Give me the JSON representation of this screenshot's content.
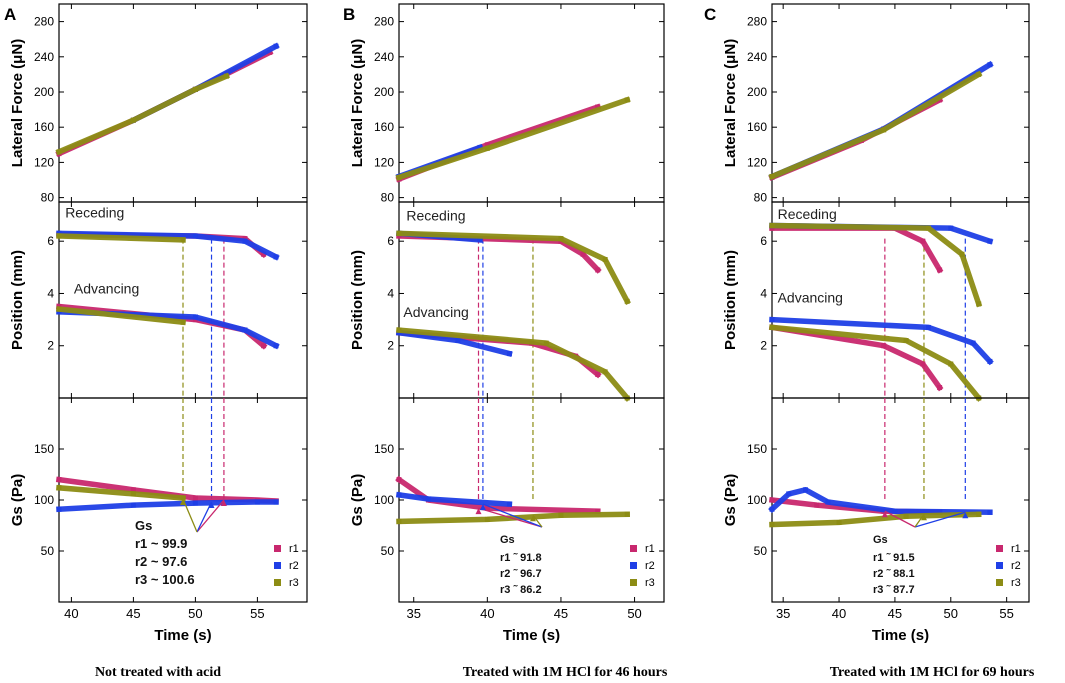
{
  "series_names": [
    "r1",
    "r2",
    "r3"
  ],
  "colors": {
    "r1": "#c8286e",
    "r2": "#1f3fe6",
    "r3": "#8c8c14"
  },
  "chart_data": [
    {
      "type": "scatter",
      "letter": "A",
      "caption": "Not treated with acid",
      "xlabel": "Time (s)",
      "xlim": [
        39,
        59
      ],
      "xticks": [
        "40",
        "45",
        "50",
        "55"
      ],
      "xtick_values": [
        40,
        45,
        50,
        55
      ],
      "panels": {
        "lateral": {
          "ylabel": "Lateral Force (μN)",
          "ylim": [
            75,
            300
          ],
          "yticks": [
            "80",
            "120",
            "160",
            "200",
            "240",
            "280"
          ],
          "ytick_values": [
            80,
            120,
            160,
            200,
            240,
            280
          ],
          "series": [
            {
              "name": "r1",
              "x": [
                39,
                45,
                50,
                56
              ],
              "y": [
                130,
                168,
                203,
                245
              ]
            },
            {
              "name": "r2",
              "x": [
                45,
                50,
                56.5
              ],
              "y": [
                168,
                203,
                252
              ]
            },
            {
              "name": "r3",
              "x": [
                39,
                45,
                50,
                52.5
              ],
              "y": [
                132,
                168,
                203,
                218
              ]
            }
          ]
        },
        "position": {
          "ylabel": "Position (mm)",
          "ylim": [
            0,
            7.5
          ],
          "yticks": [
            "2",
            "4",
            "6"
          ],
          "ytick_values": [
            2,
            4,
            6
          ],
          "labels": [
            {
              "text": "Receding",
              "x": 39.5,
              "y": 6.9
            },
            {
              "text": "Advancing",
              "x": 40.2,
              "y": 4.0
            }
          ],
          "series": [
            {
              "name": "r1",
              "x": [
                39,
                50,
                54,
                55.5
              ],
              "y": [
                6.25,
                6.2,
                6.1,
                5.5
              ]
            },
            {
              "name": "r2",
              "x": [
                39,
                50,
                54,
                56.5
              ],
              "y": [
                6.3,
                6.2,
                6.0,
                5.4
              ]
            },
            {
              "name": "r3",
              "x": [
                39,
                49
              ],
              "y": [
                6.2,
                6.05
              ]
            },
            {
              "name": "r1",
              "x": [
                39,
                50,
                54,
                55.5
              ],
              "y": [
                3.5,
                3.0,
                2.6,
                2.0
              ]
            },
            {
              "name": "r2",
              "x": [
                39,
                50,
                54,
                56.5
              ],
              "y": [
                3.3,
                3.1,
                2.6,
                2.0
              ]
            },
            {
              "name": "r3",
              "x": [
                39,
                49
              ],
              "y": [
                3.4,
                2.9
              ]
            }
          ],
          "dashed_x": [
            {
              "name": "r1",
              "x": 52.3
            },
            {
              "name": "r2",
              "x": 51.3
            },
            {
              "name": "r3",
              "x": 49
            }
          ]
        },
        "gs": {
          "ylabel": "Gs (Pa)",
          "ylim": [
            0,
            200
          ],
          "yticks": [
            "50",
            "100",
            "150"
          ],
          "ytick_values": [
            50,
            100,
            150
          ],
          "series": [
            {
              "name": "r1",
              "x": [
                39,
                45,
                50,
                55,
                56.5
              ],
              "y": [
                120,
                110,
                102,
                100,
                99
              ]
            },
            {
              "name": "r2",
              "x": [
                39,
                45,
                50,
                55,
                56.5
              ],
              "y": [
                91,
                95,
                97,
                98,
                98
              ]
            },
            {
              "name": "r3",
              "x": [
                39,
                45,
                49
              ],
              "y": [
                112,
                106,
                102
              ]
            }
          ],
          "gs_label": "Gs",
          "gs_values": [
            "r1 ~ 99.9",
            "r2 ~ 97.6",
            "r3 ~ 100.6"
          ],
          "arrow_targets": [
            {
              "name": "r1",
              "x": 52.3,
              "y": 100
            },
            {
              "name": "r2",
              "x": 51.3,
              "y": 98
            },
            {
              "name": "r3",
              "x": 49,
              "y": 101
            }
          ]
        }
      }
    },
    {
      "type": "scatter",
      "letter": "B",
      "caption": "Treated with  1M HCl for 46 hours",
      "xlabel": "Time (s)",
      "xlim": [
        34,
        52
      ],
      "xticks": [
        "35",
        "40",
        "45",
        "50"
      ],
      "xtick_values": [
        35,
        40,
        45,
        50
      ],
      "panels": {
        "lateral": {
          "ylabel": "Lateral Force (μN)",
          "ylim": [
            75,
            300
          ],
          "yticks": [
            "80",
            "120",
            "160",
            "200",
            "240",
            "280"
          ],
          "ytick_values": [
            80,
            120,
            160,
            200,
            240,
            280
          ],
          "series": [
            {
              "name": "r1",
              "x": [
                34,
                40,
                47.5
              ],
              "y": [
                101,
                140,
                183
              ]
            },
            {
              "name": "r2",
              "x": [
                34,
                39.5
              ],
              "y": [
                104,
                137
              ]
            },
            {
              "name": "r3",
              "x": [
                34,
                40,
                49.5
              ],
              "y": [
                103,
                136,
                191
              ]
            }
          ]
        },
        "position": {
          "ylabel": "Position (mm)",
          "ylim": [
            0,
            7.5
          ],
          "yticks": [
            "2",
            "4",
            "6"
          ],
          "ytick_values": [
            2,
            4,
            6
          ],
          "labels": [
            {
              "text": "Receding",
              "x": 34.5,
              "y": 6.8
            },
            {
              "text": "Advancing",
              "x": 34.3,
              "y": 3.1
            }
          ],
          "series": [
            {
              "name": "r1",
              "x": [
                34,
                45,
                46.5,
                47.5
              ],
              "y": [
                6.2,
                6.0,
                5.5,
                4.9
              ]
            },
            {
              "name": "r2",
              "x": [
                34,
                39.5
              ],
              "y": [
                6.3,
                6.05
              ]
            },
            {
              "name": "r3",
              "x": [
                34,
                45,
                48,
                49.5
              ],
              "y": [
                6.3,
                6.1,
                5.3,
                3.7
              ]
            },
            {
              "name": "r1",
              "x": [
                34,
                43,
                46,
                47.5
              ],
              "y": [
                2.5,
                2.1,
                1.6,
                0.9
              ]
            },
            {
              "name": "r2",
              "x": [
                34,
                38,
                41.5
              ],
              "y": [
                2.5,
                2.2,
                1.7
              ]
            },
            {
              "name": "r3",
              "x": [
                34,
                44,
                48,
                49.5
              ],
              "y": [
                2.6,
                2.1,
                1.0,
                0.0
              ]
            }
          ],
          "dashed_x": [
            {
              "name": "r1",
              "x": 39.4
            },
            {
              "name": "r2",
              "x": 39.7
            },
            {
              "name": "r3",
              "x": 43.1
            }
          ]
        },
        "gs": {
          "ylabel": "Gs (Pa)",
          "ylim": [
            0,
            200
          ],
          "yticks": [
            "50",
            "100",
            "150"
          ],
          "ytick_values": [
            50,
            100,
            150
          ],
          "series": [
            {
              "name": "r1",
              "x": [
                34,
                36,
                40,
                47.5
              ],
              "y": [
                120,
                100,
                92,
                89
              ]
            },
            {
              "name": "r2",
              "x": [
                34,
                36,
                41.5
              ],
              "y": [
                105,
                101,
                96
              ]
            },
            {
              "name": "r3",
              "x": [
                34,
                40,
                45,
                49.5
              ],
              "y": [
                79,
                81,
                85,
                86
              ]
            }
          ],
          "gs_label": "Gs",
          "gs_values": [
            "r1 ˜ 91.8",
            "r2 ˜ 96.7",
            "r3 ˜ 86.2"
          ],
          "arrow_targets": [
            {
              "name": "r1",
              "x": 39.4,
              "y": 92
            },
            {
              "name": "r2",
              "x": 39.7,
              "y": 96
            },
            {
              "name": "r3",
              "x": 43.1,
              "y": 85
            }
          ]
        }
      }
    },
    {
      "type": "scatter",
      "letter": "C",
      "caption": "Treated with  1M HCl for 69 hours",
      "xlabel": "Time (s)",
      "xlim": [
        34,
        57
      ],
      "xticks": [
        "35",
        "40",
        "45",
        "50",
        "55"
      ],
      "xtick_values": [
        35,
        40,
        45,
        50,
        55
      ],
      "panels": {
        "lateral": {
          "ylabel": "Lateral Force (μN)",
          "ylim": [
            75,
            300
          ],
          "yticks": [
            "80",
            "120",
            "160",
            "200",
            "240",
            "280"
          ],
          "ytick_values": [
            80,
            120,
            160,
            200,
            240,
            280
          ],
          "series": [
            {
              "name": "r1",
              "x": [
                34,
                42,
                49
              ],
              "y": [
                103,
                145,
                191
              ]
            },
            {
              "name": "r2",
              "x": [
                34,
                44,
                53.5
              ],
              "y": [
                104,
                158,
                231
              ]
            },
            {
              "name": "r3",
              "x": [
                34,
                44,
                52.5
              ],
              "y": [
                104,
                157,
                220
              ]
            }
          ]
        },
        "position": {
          "ylabel": "Position (mm)",
          "ylim": [
            0,
            7.5
          ],
          "yticks": [
            "2",
            "4",
            "6"
          ],
          "ytick_values": [
            2,
            4,
            6
          ],
          "labels": [
            {
              "text": "Receding",
              "x": 34.5,
              "y": 6.85
            },
            {
              "text": "Advancing",
              "x": 34.5,
              "y": 3.65
            }
          ],
          "series": [
            {
              "name": "r1",
              "x": [
                34,
                45,
                47.5,
                49
              ],
              "y": [
                6.5,
                6.5,
                6.0,
                4.9
              ]
            },
            {
              "name": "r2",
              "x": [
                34,
                50,
                53.5
              ],
              "y": [
                6.6,
                6.5,
                6.0
              ]
            },
            {
              "name": "r3",
              "x": [
                34,
                48,
                51,
                52.5
              ],
              "y": [
                6.6,
                6.5,
                5.5,
                3.6
              ]
            },
            {
              "name": "r1",
              "x": [
                34,
                44,
                47.5,
                49
              ],
              "y": [
                2.7,
                2.0,
                1.3,
                0.4
              ]
            },
            {
              "name": "r2",
              "x": [
                34,
                48,
                52,
                53.5
              ],
              "y": [
                3.0,
                2.7,
                2.1,
                1.4
              ]
            },
            {
              "name": "r3",
              "x": [
                34,
                46,
                50,
                52.5
              ],
              "y": [
                2.7,
                2.2,
                1.3,
                0.0
              ]
            }
          ],
          "dashed_x": [
            {
              "name": "r1",
              "x": 44.1
            },
            {
              "name": "r2",
              "x": 51.3
            },
            {
              "name": "r3",
              "x": 47.6
            }
          ]
        },
        "gs": {
          "ylabel": "Gs (Pa)",
          "ylim": [
            0,
            200
          ],
          "yticks": [
            "50",
            "100",
            "150"
          ],
          "ytick_values": [
            50,
            100,
            150
          ],
          "series": [
            {
              "name": "r1",
              "x": [
                34,
                38,
                44,
                49
              ],
              "y": [
                100,
                95,
                89,
                88
              ]
            },
            {
              "name": "r2",
              "x": [
                34,
                35.5,
                37,
                39,
                45,
                53.5
              ],
              "y": [
                91,
                106,
                110,
                98,
                89,
                88
              ]
            },
            {
              "name": "r3",
              "x": [
                34,
                40,
                46,
                52.5
              ],
              "y": [
                76,
                78,
                84,
                86
              ]
            }
          ],
          "gs_label": "Gs",
          "gs_values": [
            "r1 ˜ 91.5",
            "r2 ˜ 88.1",
            "r3 ˜ 87.7"
          ],
          "arrow_targets": [
            {
              "name": "r1",
              "x": 44.1,
              "y": 89
            },
            {
              "name": "r2",
              "x": 51.3,
              "y": 88
            },
            {
              "name": "r3",
              "x": 47.6,
              "y": 86
            }
          ]
        }
      }
    }
  ]
}
